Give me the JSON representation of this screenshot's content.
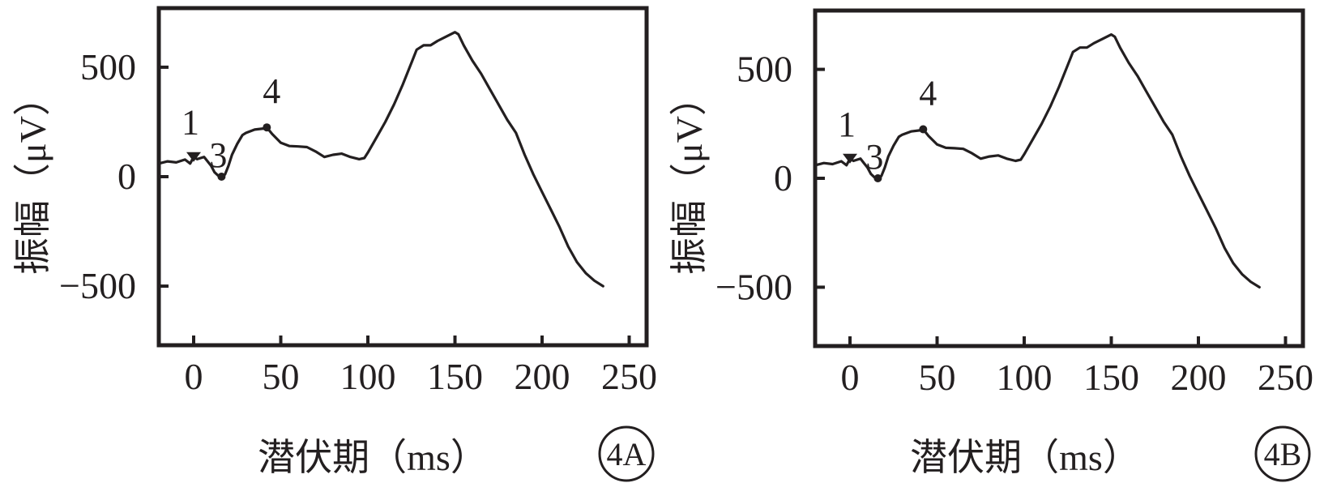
{
  "chart_data": [
    {
      "panel": "4A",
      "type": "line",
      "xlabel": "潜伏期（ms）",
      "ylabel": "振幅（μV）",
      "xlim": [
        -20,
        260
      ],
      "ylim": [
        -770,
        770
      ],
      "xticks": [
        0,
        50,
        100,
        150,
        200,
        250
      ],
      "yticks": [
        -500,
        0,
        500
      ],
      "x": [
        -20,
        -15,
        -10,
        -5,
        -2,
        0,
        2,
        4,
        6,
        8,
        10,
        12,
        14,
        16,
        18,
        20,
        22,
        25,
        28,
        30,
        35,
        40,
        42,
        45,
        50,
        55,
        60,
        65,
        70,
        75,
        80,
        85,
        90,
        95,
        98,
        100,
        105,
        110,
        115,
        120,
        125,
        128,
        132,
        136,
        140,
        145,
        150,
        152,
        155,
        160,
        165,
        170,
        175,
        180,
        185,
        190,
        195,
        200,
        205,
        210,
        215,
        220,
        225,
        230,
        235
      ],
      "y": [
        60,
        70,
        65,
        78,
        60,
        90,
        80,
        85,
        90,
        70,
        50,
        20,
        5,
        0,
        10,
        50,
        100,
        150,
        190,
        200,
        215,
        220,
        225,
        195,
        155,
        140,
        138,
        135,
        115,
        90,
        100,
        105,
        90,
        80,
        85,
        110,
        180,
        250,
        330,
        420,
        520,
        580,
        600,
        600,
        620,
        640,
        660,
        650,
        600,
        530,
        470,
        400,
        330,
        260,
        200,
        100,
        10,
        -70,
        -150,
        -230,
        -320,
        -390,
        -440,
        -475,
        -500
      ],
      "peaks": [
        {
          "label": "1",
          "x": 0,
          "y": 90
        },
        {
          "label": "3",
          "x": 16,
          "y": 0
        },
        {
          "label": "4",
          "x": 42,
          "y": 225
        }
      ],
      "grid": false
    },
    {
      "panel": "4B",
      "type": "line",
      "xlabel": "潜伏期（ms）",
      "ylabel": "振幅（μV）",
      "xlim": [
        -20,
        260
      ],
      "ylim": [
        -770,
        770
      ],
      "xticks": [
        0,
        50,
        100,
        150,
        200,
        250
      ],
      "yticks": [
        -500,
        0,
        500
      ],
      "x": [
        -20,
        -15,
        -10,
        -5,
        -2,
        0,
        2,
        4,
        6,
        8,
        10,
        12,
        14,
        16,
        18,
        20,
        22,
        25,
        28,
        30,
        35,
        40,
        42,
        45,
        50,
        55,
        60,
        65,
        70,
        75,
        80,
        85,
        90,
        95,
        98,
        100,
        105,
        110,
        115,
        120,
        125,
        128,
        132,
        136,
        140,
        145,
        150,
        152,
        155,
        160,
        165,
        170,
        175,
        180,
        185,
        190,
        195,
        200,
        205,
        210,
        215,
        220,
        225,
        230,
        235
      ],
      "y": [
        60,
        70,
        65,
        78,
        60,
        90,
        80,
        85,
        90,
        70,
        50,
        20,
        5,
        0,
        10,
        50,
        100,
        150,
        190,
        200,
        215,
        220,
        225,
        195,
        155,
        140,
        138,
        135,
        115,
        90,
        100,
        105,
        90,
        80,
        85,
        110,
        180,
        250,
        330,
        420,
        520,
        580,
        600,
        600,
        620,
        640,
        660,
        650,
        600,
        530,
        470,
        400,
        330,
        260,
        200,
        100,
        10,
        -70,
        -150,
        -230,
        -320,
        -390,
        -440,
        -475,
        -500
      ],
      "peaks": [
        {
          "label": "1",
          "x": 0,
          "y": 90
        },
        {
          "label": "3",
          "x": 16,
          "y": 0
        },
        {
          "label": "4",
          "x": 42,
          "y": 225
        }
      ],
      "grid": false
    }
  ],
  "colors": {
    "ink": "#231f20",
    "background": "#ffffff"
  }
}
